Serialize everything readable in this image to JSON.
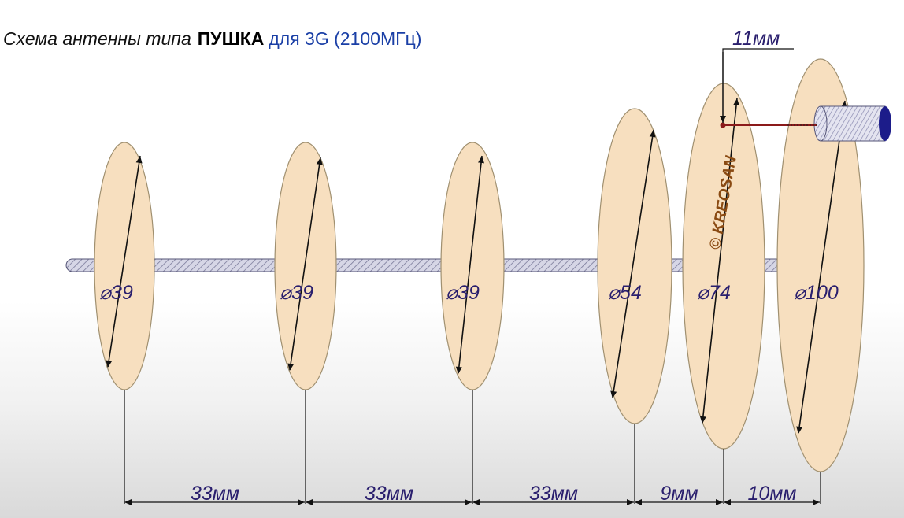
{
  "title": {
    "part1": "Схема антенны типа",
    "part2": "ПУШКА",
    "part3": "для 3G (2100МГц)"
  },
  "discs": [
    {
      "label": "39",
      "diameter_mm": 39
    },
    {
      "label": "39",
      "diameter_mm": 39
    },
    {
      "label": "39",
      "diameter_mm": 39
    },
    {
      "label": "54",
      "diameter_mm": 54
    },
    {
      "label": "74",
      "diameter_mm": 74
    },
    {
      "label": "100",
      "diameter_mm": 100
    }
  ],
  "diameter_symbol": "⌀",
  "spacings": [
    "33мм",
    "33мм",
    "33мм",
    "9мм",
    "10мм"
  ],
  "feed_offset": "11мм",
  "watermark": "© KREOSAN",
  "colors": {
    "disc_fill": "#f7dfbf",
    "disc_stroke": "#a09070",
    "rod_stroke": "#444466",
    "label_color": "#2a1f6e",
    "title_accent": "#1a3fa6",
    "feed_line": "#8b1a1a",
    "cable_end": "#1c1c8a",
    "watermark": "#8a4a12"
  }
}
